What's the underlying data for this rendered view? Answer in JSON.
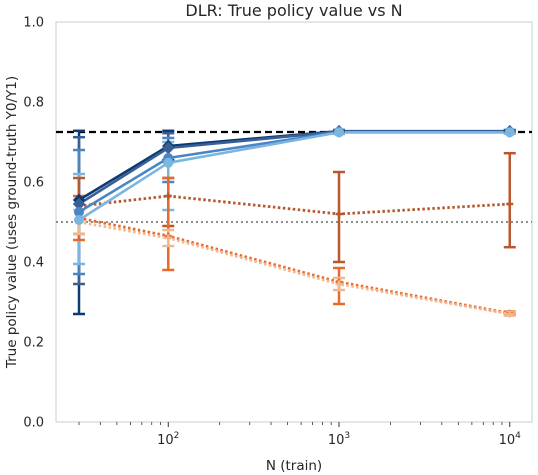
{
  "chart_data": {
    "type": "line",
    "title": "DLR: True policy value vs N",
    "xlabel": "N (train)",
    "ylabel": "True policy value (uses ground-truth Y0/Y1)",
    "xscale": "log",
    "xlim": [
      22,
      13500
    ],
    "ylim": [
      0,
      1
    ],
    "yticks": [
      "0.0",
      "0.2",
      "0.4",
      "0.6",
      "0.8",
      "1.0"
    ],
    "xticks": [
      {
        "value": 100,
        "base": "10",
        "exp": "2"
      },
      {
        "value": 1000,
        "base": "10",
        "exp": "3"
      },
      {
        "value": 10000,
        "base": "10",
        "exp": "4"
      }
    ],
    "grid": false,
    "reference_lines": [
      {
        "y": 0.725,
        "style": "dashed",
        "color": "#000000"
      },
      {
        "y": 0.5,
        "style": "dotted",
        "color": "#7f7f7f"
      }
    ],
    "x": [
      30,
      100,
      1000,
      10000
    ],
    "series": [
      {
        "color": "#0b3a75",
        "style": "solid",
        "marker": "diamond",
        "values": [
          0.555,
          0.69,
          0.727,
          0.727
        ],
        "err_low": [
          0.27,
          0.655,
          0.722,
          0.724
        ],
        "err_high": [
          0.728,
          0.728,
          0.73,
          0.73
        ]
      },
      {
        "color": "#3a5f94",
        "style": "solid",
        "marker": "diamond",
        "values": [
          0.545,
          0.685,
          0.726,
          0.726
        ],
        "err_low": [
          0.345,
          0.65,
          0.722,
          0.723
        ],
        "err_high": [
          0.712,
          0.722,
          0.729,
          0.729
        ]
      },
      {
        "color": "#4a86c4",
        "style": "solid",
        "marker": "circle",
        "values": [
          0.525,
          0.66,
          0.725,
          0.725
        ],
        "err_low": [
          0.37,
          0.6,
          0.721,
          0.722
        ],
        "err_high": [
          0.68,
          0.71,
          0.728,
          0.728
        ]
      },
      {
        "color": "#7ab6e0",
        "style": "solid",
        "marker": "circle",
        "values": [
          0.505,
          0.648,
          0.724,
          0.724
        ],
        "err_low": [
          0.395,
          0.53,
          0.72,
          0.721
        ],
        "err_high": [
          0.62,
          0.7,
          0.727,
          0.727
        ]
      },
      {
        "color": "#b8582c",
        "style": "dotted",
        "marker": "plus",
        "values": [
          0.54,
          0.565,
          0.52,
          0.545
        ],
        "err_low": [
          0.47,
          0.49,
          0.4,
          0.437
        ],
        "err_high": [
          0.61,
          0.61,
          0.625,
          0.672
        ]
      },
      {
        "color": "#e8692a",
        "style": "dotted",
        "marker": "plus",
        "values": [
          0.51,
          0.465,
          0.35,
          0.272
        ],
        "err_low": [
          0.455,
          0.38,
          0.295,
          0.268
        ],
        "err_high": [
          0.565,
          0.61,
          0.385,
          0.276
        ]
      },
      {
        "color": "#f0b890",
        "style": "dotted",
        "marker": "plus",
        "values": [
          0.5,
          0.46,
          0.345,
          0.27
        ],
        "err_low": [
          0.47,
          0.44,
          0.33,
          0.266
        ],
        "err_high": [
          0.53,
          0.48,
          0.36,
          0.274
        ]
      }
    ]
  }
}
